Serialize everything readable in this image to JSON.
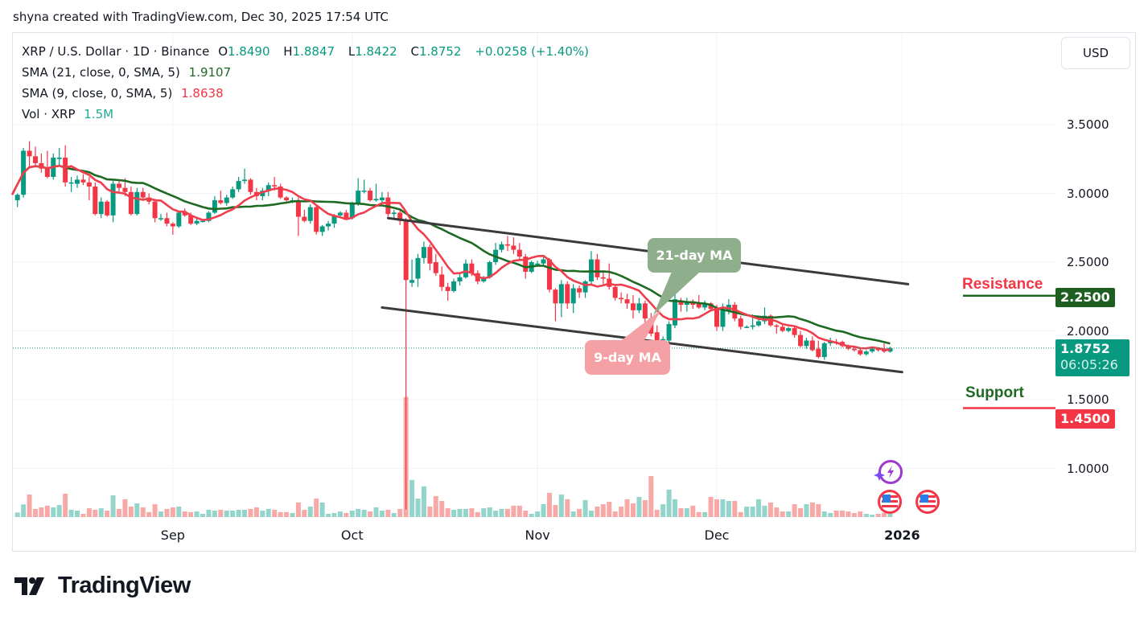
{
  "header": {
    "caption": "shyna created with TradingView.com, Dec 30, 2025 17:54 UTC"
  },
  "legend": {
    "symbol": "XRP / U.S. Dollar · 1D · Binance",
    "o_label": "O",
    "o_value": "1.8490",
    "h_label": "H",
    "h_value": "1.8847",
    "l_label": "L",
    "l_value": "1.8422",
    "c_label": "C",
    "c_value": "1.8752",
    "change": "+0.0258 (+1.40%)",
    "sma21_label": "SMA (21, close, 0, SMA, 5)",
    "sma21_value": "1.9107",
    "sma9_label": "SMA (9, close, 0, SMA, 5)",
    "sma9_value": "1.8638",
    "vol_label": "Vol · XRP",
    "vol_value": "1.5M"
  },
  "price_axis": {
    "currency_button": "USD",
    "current_price": "1.8752",
    "countdown": "06:05:26",
    "resistance_price": "2.2500",
    "support_price": "1.4500"
  },
  "annotations": {
    "resistance_label": "Resistance",
    "support_label": "Support",
    "ma21_callout": "21-day MA",
    "ma9_callout": "9-day MA"
  },
  "footer": {
    "logo_text": "TradingView"
  },
  "icons": [
    "lightning-sparkle-icon",
    "us-flag-icon",
    "us-flag-icon"
  ],
  "colors": {
    "up": "#089981",
    "down": "#f23645",
    "vol_up": "#93d4cb",
    "vol_down": "#f7a9a7",
    "sma21": "#1e6a23",
    "sma9": "#ef3e4e",
    "channel": "#3a3a3a",
    "resistance_line": "#1e6a23",
    "support_line": "#f23645",
    "ma21_callout": "#8fae8b",
    "ma9_callout": "#f4a0a5"
  },
  "chart_data": {
    "type": "candlestick",
    "symbol": "XRP / U.S. Dollar",
    "interval": "1D",
    "exchange": "Binance",
    "y_ticks": [
      "3.5000",
      "3.0000",
      "2.5000",
      "2.0000",
      "1.5000",
      "1.0000"
    ],
    "ylim": [
      0.6,
      3.75
    ],
    "grid": true,
    "x_ticks": [
      {
        "label": "Sep",
        "date": "2025-09-01"
      },
      {
        "label": "Oct",
        "date": "2025-10-01"
      },
      {
        "label": "Nov",
        "date": "2025-11-01"
      },
      {
        "label": "Dec",
        "date": "2025-12-01"
      },
      {
        "label": "2026",
        "date": "2026-01-01"
      }
    ],
    "candle_fields": [
      "date",
      "open",
      "high",
      "low",
      "close"
    ],
    "candles": [
      [
        "2025-08-06",
        2.95,
        3.0,
        2.9,
        2.99
      ],
      [
        "2025-08-07",
        2.99,
        3.33,
        2.97,
        3.31
      ],
      [
        "2025-08-08",
        3.31,
        3.38,
        3.18,
        3.27
      ],
      [
        "2025-08-09",
        3.27,
        3.34,
        3.19,
        3.22
      ],
      [
        "2025-08-10",
        3.22,
        3.29,
        3.15,
        3.18
      ],
      [
        "2025-08-11",
        3.18,
        3.31,
        3.11,
        3.12
      ],
      [
        "2025-08-12",
        3.12,
        3.29,
        3.1,
        3.26
      ],
      [
        "2025-08-13",
        3.25,
        3.33,
        3.2,
        3.26
      ],
      [
        "2025-08-14",
        3.26,
        3.35,
        3.05,
        3.08
      ],
      [
        "2025-08-15",
        3.08,
        3.12,
        3.01,
        3.08
      ],
      [
        "2025-08-16",
        3.07,
        3.13,
        3.04,
        3.1
      ],
      [
        "2025-08-17",
        3.1,
        3.14,
        3.06,
        3.08
      ],
      [
        "2025-08-18",
        3.08,
        3.12,
        2.95,
        3.05
      ],
      [
        "2025-08-19",
        3.05,
        3.08,
        2.84,
        2.85
      ],
      [
        "2025-08-20",
        2.85,
        2.97,
        2.82,
        2.94
      ],
      [
        "2025-08-21",
        2.94,
        2.95,
        2.83,
        2.84
      ],
      [
        "2025-08-22",
        2.84,
        3.09,
        2.79,
        3.07
      ],
      [
        "2025-08-23",
        3.07,
        3.1,
        3.0,
        3.04
      ],
      [
        "2025-08-24",
        3.04,
        3.11,
        2.98,
        3.01
      ],
      [
        "2025-08-25",
        3.01,
        3.05,
        2.84,
        2.85
      ],
      [
        "2025-08-26",
        2.85,
        3.04,
        2.84,
        3.01
      ],
      [
        "2025-08-27",
        3.01,
        3.04,
        2.95,
        2.97
      ],
      [
        "2025-08-28",
        2.97,
        3.0,
        2.92,
        2.94
      ],
      [
        "2025-08-29",
        2.94,
        2.96,
        2.79,
        2.82
      ],
      [
        "2025-08-30",
        2.82,
        2.85,
        2.8,
        2.82
      ],
      [
        "2025-08-31",
        2.82,
        2.86,
        2.76,
        2.78
      ],
      [
        "2025-09-01",
        2.78,
        2.79,
        2.7,
        2.76
      ],
      [
        "2025-09-02",
        2.76,
        2.87,
        2.75,
        2.86
      ],
      [
        "2025-09-03",
        2.86,
        2.89,
        2.83,
        2.84
      ],
      [
        "2025-09-04",
        2.84,
        2.86,
        2.77,
        2.78
      ],
      [
        "2025-09-05",
        2.78,
        2.83,
        2.77,
        2.8
      ],
      [
        "2025-09-06",
        2.8,
        2.81,
        2.79,
        2.8
      ],
      [
        "2025-09-07",
        2.8,
        2.87,
        2.79,
        2.86
      ],
      [
        "2025-09-08",
        2.86,
        2.98,
        2.85,
        2.95
      ],
      [
        "2025-09-09",
        2.95,
        3.02,
        2.92,
        2.93
      ],
      [
        "2025-09-10",
        2.93,
        2.99,
        2.91,
        2.97
      ],
      [
        "2025-09-11",
        2.97,
        3.05,
        2.96,
        3.03
      ],
      [
        "2025-09-12",
        3.03,
        3.12,
        3.01,
        3.09
      ],
      [
        "2025-09-13",
        3.09,
        3.18,
        3.07,
        3.1
      ],
      [
        "2025-09-14",
        3.1,
        3.11,
        2.99,
        3.01
      ],
      [
        "2025-09-15",
        3.01,
        3.04,
        2.95,
        2.98
      ],
      [
        "2025-09-16",
        2.98,
        3.04,
        2.95,
        3.02
      ],
      [
        "2025-09-17",
        3.02,
        3.08,
        2.98,
        3.06
      ],
      [
        "2025-09-18",
        3.06,
        3.12,
        3.02,
        3.05
      ],
      [
        "2025-09-19",
        3.05,
        3.07,
        2.96,
        2.97
      ],
      [
        "2025-09-20",
        2.97,
        2.98,
        2.93,
        2.95
      ],
      [
        "2025-09-21",
        2.95,
        2.97,
        2.93,
        2.95
      ],
      [
        "2025-09-22",
        2.95,
        2.97,
        2.69,
        2.83
      ],
      [
        "2025-09-23",
        2.83,
        2.88,
        2.79,
        2.8
      ],
      [
        "2025-09-24",
        2.8,
        2.92,
        2.78,
        2.9
      ],
      [
        "2025-09-25",
        2.9,
        2.91,
        2.7,
        2.72
      ],
      [
        "2025-09-26",
        2.72,
        2.77,
        2.69,
        2.76
      ],
      [
        "2025-09-27",
        2.76,
        2.8,
        2.73,
        2.78
      ],
      [
        "2025-09-28",
        2.78,
        2.85,
        2.75,
        2.84
      ],
      [
        "2025-09-29",
        2.84,
        2.87,
        2.82,
        2.86
      ],
      [
        "2025-09-30",
        2.86,
        2.88,
        2.81,
        2.82
      ],
      [
        "2025-10-01",
        2.82,
        2.94,
        2.81,
        2.93
      ],
      [
        "2025-10-02",
        2.93,
        3.11,
        2.91,
        3.02
      ],
      [
        "2025-10-03",
        3.02,
        3.1,
        3.0,
        3.02
      ],
      [
        "2025-10-04",
        3.02,
        3.04,
        2.94,
        2.95
      ],
      [
        "2025-10-05",
        2.95,
        3.07,
        2.94,
        2.96
      ],
      [
        "2025-10-06",
        2.95,
        3.01,
        2.93,
        2.97
      ],
      [
        "2025-10-07",
        2.97,
        3.01,
        2.83,
        2.85
      ],
      [
        "2025-10-08",
        2.85,
        2.88,
        2.82,
        2.86
      ],
      [
        "2025-10-09",
        2.86,
        2.88,
        2.77,
        2.8
      ],
      [
        "2025-10-10",
        2.8,
        2.82,
        0.7,
        2.37
      ],
      [
        "2025-10-11",
        2.35,
        2.52,
        2.32,
        2.37
      ],
      [
        "2025-10-12",
        2.38,
        2.56,
        2.32,
        2.53
      ],
      [
        "2025-10-13",
        2.53,
        2.65,
        2.49,
        2.61
      ],
      [
        "2025-10-14",
        2.61,
        2.63,
        2.44,
        2.49
      ],
      [
        "2025-10-15",
        2.5,
        2.56,
        2.4,
        2.42
      ],
      [
        "2025-10-16",
        2.41,
        2.47,
        2.29,
        2.32
      ],
      [
        "2025-10-17",
        2.32,
        2.35,
        2.22,
        2.29
      ],
      [
        "2025-10-18",
        2.29,
        2.38,
        2.28,
        2.36
      ],
      [
        "2025-10-19",
        2.36,
        2.42,
        2.33,
        2.39
      ],
      [
        "2025-10-20",
        2.39,
        2.52,
        2.38,
        2.49
      ],
      [
        "2025-10-21",
        2.49,
        2.52,
        2.4,
        2.42
      ],
      [
        "2025-10-22",
        2.42,
        2.44,
        2.34,
        2.36
      ],
      [
        "2025-10-23",
        2.36,
        2.4,
        2.35,
        2.39
      ],
      [
        "2025-10-24",
        2.39,
        2.51,
        2.38,
        2.5
      ],
      [
        "2025-10-25",
        2.5,
        2.64,
        2.48,
        2.59
      ],
      [
        "2025-10-26",
        2.59,
        2.65,
        2.57,
        2.63
      ],
      [
        "2025-10-27",
        2.63,
        2.69,
        2.58,
        2.62
      ],
      [
        "2025-10-28",
        2.62,
        2.68,
        2.56,
        2.59
      ],
      [
        "2025-10-29",
        2.59,
        2.64,
        2.52,
        2.54
      ],
      [
        "2025-10-30",
        2.54,
        2.56,
        2.38,
        2.43
      ],
      [
        "2025-10-31",
        2.43,
        2.51,
        2.42,
        2.5
      ],
      [
        "2025-11-01",
        2.49,
        2.51,
        2.47,
        2.49
      ],
      [
        "2025-11-02",
        2.49,
        2.54,
        2.48,
        2.52
      ],
      [
        "2025-11-03",
        2.52,
        2.53,
        2.28,
        2.3
      ],
      [
        "2025-11-04",
        2.3,
        2.31,
        2.07,
        2.2
      ],
      [
        "2025-11-05",
        2.2,
        2.37,
        2.1,
        2.34
      ],
      [
        "2025-11-06",
        2.34,
        2.36,
        2.16,
        2.2
      ],
      [
        "2025-11-07",
        2.2,
        2.34,
        2.13,
        2.31
      ],
      [
        "2025-11-08",
        2.31,
        2.33,
        2.24,
        2.28
      ],
      [
        "2025-11-09",
        2.28,
        2.37,
        2.24,
        2.36
      ],
      [
        "2025-11-10",
        2.36,
        2.58,
        2.34,
        2.52
      ],
      [
        "2025-11-11",
        2.52,
        2.56,
        2.37,
        2.39
      ],
      [
        "2025-11-12",
        2.39,
        2.44,
        2.34,
        2.38
      ],
      [
        "2025-11-13",
        2.38,
        2.49,
        2.3,
        2.32
      ],
      [
        "2025-11-14",
        2.32,
        2.34,
        2.22,
        2.24
      ],
      [
        "2025-11-15",
        2.24,
        2.28,
        2.2,
        2.23
      ],
      [
        "2025-11-16",
        2.23,
        2.27,
        2.16,
        2.2
      ],
      [
        "2025-11-17",
        2.2,
        2.26,
        2.09,
        2.15
      ],
      [
        "2025-11-18",
        2.15,
        2.24,
        2.13,
        2.2
      ],
      [
        "2025-11-19",
        2.2,
        2.22,
        2.06,
        2.09
      ],
      [
        "2025-11-20",
        2.09,
        2.13,
        1.96,
        1.98
      ],
      [
        "2025-11-21",
        1.99,
        2.04,
        1.83,
        1.93
      ],
      [
        "2025-11-22",
        1.94,
        1.96,
        1.9,
        1.94
      ],
      [
        "2025-11-23",
        1.93,
        2.07,
        1.92,
        2.05
      ],
      [
        "2025-11-24",
        2.04,
        2.27,
        2.02,
        2.23
      ],
      [
        "2025-11-25",
        2.22,
        2.24,
        2.14,
        2.19
      ],
      [
        "2025-11-26",
        2.19,
        2.24,
        2.14,
        2.21
      ],
      [
        "2025-11-27",
        2.21,
        2.23,
        2.16,
        2.19
      ],
      [
        "2025-11-28",
        2.2,
        2.26,
        2.16,
        2.17
      ],
      [
        "2025-11-29",
        2.17,
        2.22,
        2.15,
        2.2
      ],
      [
        "2025-11-30",
        2.2,
        2.21,
        2.14,
        2.16
      ],
      [
        "2025-12-01",
        2.17,
        2.19,
        2.0,
        2.03
      ],
      [
        "2025-12-02",
        2.03,
        2.2,
        2.0,
        2.15
      ],
      [
        "2025-12-03",
        2.15,
        2.23,
        2.12,
        2.19
      ],
      [
        "2025-12-04",
        2.19,
        2.21,
        2.07,
        2.09
      ],
      [
        "2025-12-05",
        2.09,
        2.11,
        2.01,
        2.03
      ],
      [
        "2025-12-06",
        2.03,
        2.04,
        2.02,
        2.03
      ],
      [
        "2025-12-07",
        2.03,
        2.12,
        2.01,
        2.04
      ],
      [
        "2025-12-08",
        2.04,
        2.1,
        2.03,
        2.07
      ],
      [
        "2025-12-09",
        2.07,
        2.17,
        2.05,
        2.11
      ],
      [
        "2025-12-10",
        2.11,
        2.12,
        2.03,
        2.04
      ],
      [
        "2025-12-11",
        2.04,
        2.05,
        1.98,
        2.03
      ],
      [
        "2025-12-12",
        2.03,
        2.05,
        1.99,
        2.0
      ],
      [
        "2025-12-13",
        2.0,
        2.03,
        1.99,
        2.02
      ],
      [
        "2025-12-14",
        2.02,
        2.04,
        1.95,
        1.97
      ],
      [
        "2025-12-15",
        1.97,
        2.0,
        1.88,
        1.89
      ],
      [
        "2025-12-16",
        1.89,
        1.95,
        1.87,
        1.93
      ],
      [
        "2025-12-17",
        1.93,
        1.96,
        1.85,
        1.86
      ],
      [
        "2025-12-18",
        1.87,
        1.93,
        1.8,
        1.81
      ],
      [
        "2025-12-19",
        1.81,
        1.92,
        1.79,
        1.91
      ],
      [
        "2025-12-20",
        1.91,
        1.95,
        1.89,
        1.93
      ],
      [
        "2025-12-21",
        1.92,
        1.94,
        1.9,
        1.91
      ],
      [
        "2025-12-22",
        1.92,
        1.93,
        1.88,
        1.89
      ],
      [
        "2025-12-23",
        1.89,
        1.9,
        1.86,
        1.87
      ],
      [
        "2025-12-24",
        1.87,
        1.88,
        1.85,
        1.86
      ],
      [
        "2025-12-25",
        1.86,
        1.87,
        1.82,
        1.83
      ],
      [
        "2025-12-26",
        1.83,
        1.86,
        1.82,
        1.85
      ],
      [
        "2025-12-27",
        1.85,
        1.88,
        1.84,
        1.87
      ],
      [
        "2025-12-28",
        1.87,
        1.88,
        1.85,
        1.86
      ],
      [
        "2025-12-29",
        1.87,
        1.91,
        1.84,
        1.85
      ],
      [
        "2025-12-30",
        1.849,
        1.8847,
        1.8422,
        1.8752
      ]
    ],
    "volume_unit": "M XRP",
    "volumes": [
      2.1,
      5.9,
      10.5,
      3.8,
      4.5,
      5.3,
      4.5,
      5.6,
      10.9,
      3.4,
      3.0,
      1.5,
      4.1,
      3.4,
      4.1,
      3.0,
      10.1,
      3.8,
      8.3,
      4.9,
      6.4,
      4.5,
      2.3,
      6.0,
      2.6,
      3.8,
      4.5,
      4.9,
      2.6,
      2.3,
      2.6,
      1.5,
      3.4,
      3.0,
      3.4,
      3.0,
      3.0,
      3.4,
      3.4,
      3.8,
      4.5,
      3.0,
      3.8,
      3.4,
      2.3,
      2.3,
      1.9,
      6.8,
      3.4,
      4.9,
      8.6,
      6.8,
      1.5,
      1.9,
      2.6,
      1.9,
      3.0,
      3.8,
      3.4,
      2.6,
      4.5,
      3.0,
      3.4,
      1.9,
      3.8,
      56.0,
      17.3,
      8.6,
      14.3,
      4.9,
      9.8,
      7.5,
      4.1,
      3.4,
      3.8,
      3.8,
      4.1,
      2.3,
      4.1,
      4.5,
      3.0,
      3.8,
      3.8,
      5.3,
      5.3,
      3.0,
      1.5,
      2.6,
      6.0,
      11.3,
      5.6,
      10.5,
      8.3,
      2.6,
      3.8,
      7.9,
      3.0,
      4.9,
      6.0,
      7.1,
      2.6,
      4.9,
      8.3,
      6.4,
      9.4,
      7.9,
      19.1,
      3.4,
      6.0,
      12.8,
      8.3,
      4.1,
      4.1,
      5.3,
      2.3,
      2.3,
      9.4,
      8.3,
      8.3,
      7.5,
      7.5,
      2.3,
      4.9,
      4.9,
      8.3,
      5.3,
      6.8,
      4.5,
      2.6,
      2.6,
      6.0,
      4.1,
      6.0,
      6.8,
      6.0,
      2.6,
      1.9,
      3.0,
      3.0,
      2.6,
      1.9,
      2.6,
      1.5,
      1.1,
      1.5,
      2.0,
      1.5
    ],
    "series": [
      {
        "name": "SMA (21, close, 0, SMA, 5)",
        "period": 21,
        "last": 1.9107
      },
      {
        "name": "SMA (9, close, 0, SMA, 5)",
        "period": 9,
        "last": 1.8638
      }
    ],
    "drawings": {
      "channel_upper": [
        [
          "2025-10-07",
          2.82
        ],
        [
          "2026-01-02",
          2.34
        ]
      ],
      "channel_lower": [
        [
          "2025-10-06",
          2.17
        ],
        [
          "2026-01-01",
          1.7
        ]
      ],
      "resistance": 2.25,
      "support": 1.45
    }
  }
}
